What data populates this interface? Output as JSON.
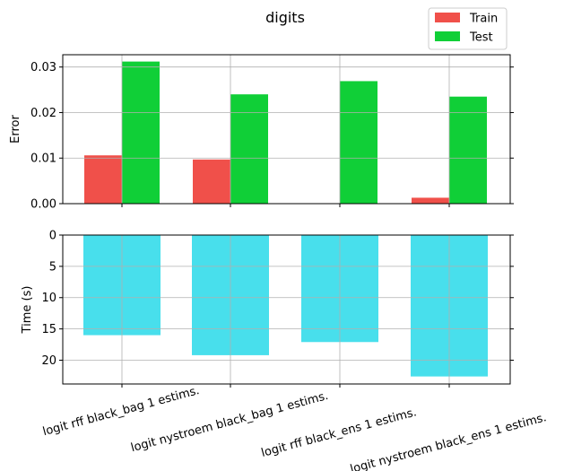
{
  "chart_data": [
    {
      "type": "bar",
      "title": "digits",
      "ylabel": "Error",
      "xlabel": "",
      "categories": [
        "logit rff black_bag 1 estims.",
        "logit nystroem black_bag 1 estims.",
        "logit rff black_ens 1 estims.",
        "logit nystroem black_ens 1 estims."
      ],
      "series": [
        {
          "name": "Train",
          "color": "#f0504a",
          "values": [
            0.0106,
            0.0097,
            0.0,
            0.0013
          ]
        },
        {
          "name": "Test",
          "color": "#10cf37",
          "values": [
            0.0312,
            0.024,
            0.0269,
            0.0235
          ]
        }
      ],
      "ylim": [
        0,
        0.0327
      ],
      "yticks": [
        "0.00",
        "0.01",
        "0.02",
        "0.03"
      ],
      "ytick_values": [
        0,
        0.01,
        0.02,
        0.03
      ],
      "grid": true,
      "legend": "top-right"
    },
    {
      "type": "bar",
      "ylabel": "Time (s)",
      "xlabel": "",
      "categories": [
        "logit rff black_bag 1 estims.",
        "logit nystroem black_bag 1 estims.",
        "logit rff black_ens 1 estims.",
        "logit nystroem black_ens 1 estims."
      ],
      "series": [
        {
          "color": "#48dfec",
          "values": [
            16.0,
            19.2,
            17.1,
            22.6
          ]
        }
      ],
      "ylim": [
        0,
        23.8
      ],
      "inverted_y": true,
      "yticks": [
        "0",
        "5",
        "10",
        "15",
        "20"
      ],
      "ytick_values": [
        0,
        5,
        10,
        15,
        20
      ],
      "grid": true
    }
  ]
}
